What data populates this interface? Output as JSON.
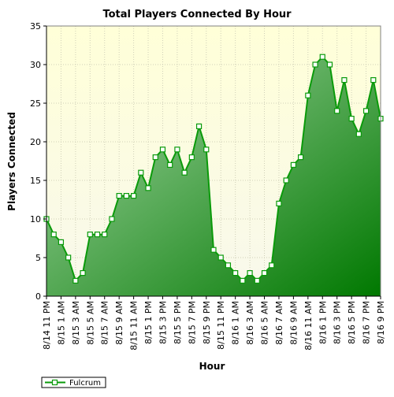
{
  "chart_data": {
    "type": "area",
    "title": "Total Players Connected By Hour",
    "xlabel": "Hour",
    "ylabel": "Players Connected",
    "ylim": [
      0,
      35
    ],
    "yticks": [
      0,
      5,
      10,
      15,
      20,
      25,
      30,
      35
    ],
    "grid": true,
    "legend_position": "bottom-left",
    "colors": {
      "plot_bg_top": "#ffffd8",
      "plot_bg_bottom": "#f8f8ec",
      "grid": "#d0d0b8",
      "line": "#0a9a0a",
      "fill_light": "#a8d8a8",
      "fill_dark": "#007800",
      "marker_fill": "#ffffff"
    },
    "x_tick_labels": [
      "8/14 11 PM",
      "8/15 1 AM",
      "8/15 3 AM",
      "8/15 5 AM",
      "8/15 7 AM",
      "8/15 9 AM",
      "8/15 11 AM",
      "8/15 1 PM",
      "8/15 3 PM",
      "8/15 5 PM",
      "8/15 7 PM",
      "8/15 9 PM",
      "8/15 11 PM",
      "8/16 1 AM",
      "8/16 3 AM",
      "8/16 5 AM",
      "8/16 7 AM",
      "8/16 9 AM",
      "8/16 11 AM",
      "8/16 1 PM",
      "8/16 3 PM",
      "8/16 5 PM",
      "8/16 7 PM",
      "8/16 9 PM"
    ],
    "series": [
      {
        "name": "Fulcrum",
        "values": [
          10,
          8,
          7,
          5,
          2,
          3,
          8,
          8,
          8,
          10,
          13,
          13,
          13,
          16,
          14,
          18,
          19,
          17,
          19,
          16,
          18,
          22,
          19,
          6,
          5,
          4,
          3,
          2,
          3,
          2,
          3,
          4,
          12,
          15,
          17,
          18,
          26,
          30,
          31,
          30,
          24,
          28,
          23,
          21,
          24,
          28,
          23
        ]
      }
    ]
  }
}
